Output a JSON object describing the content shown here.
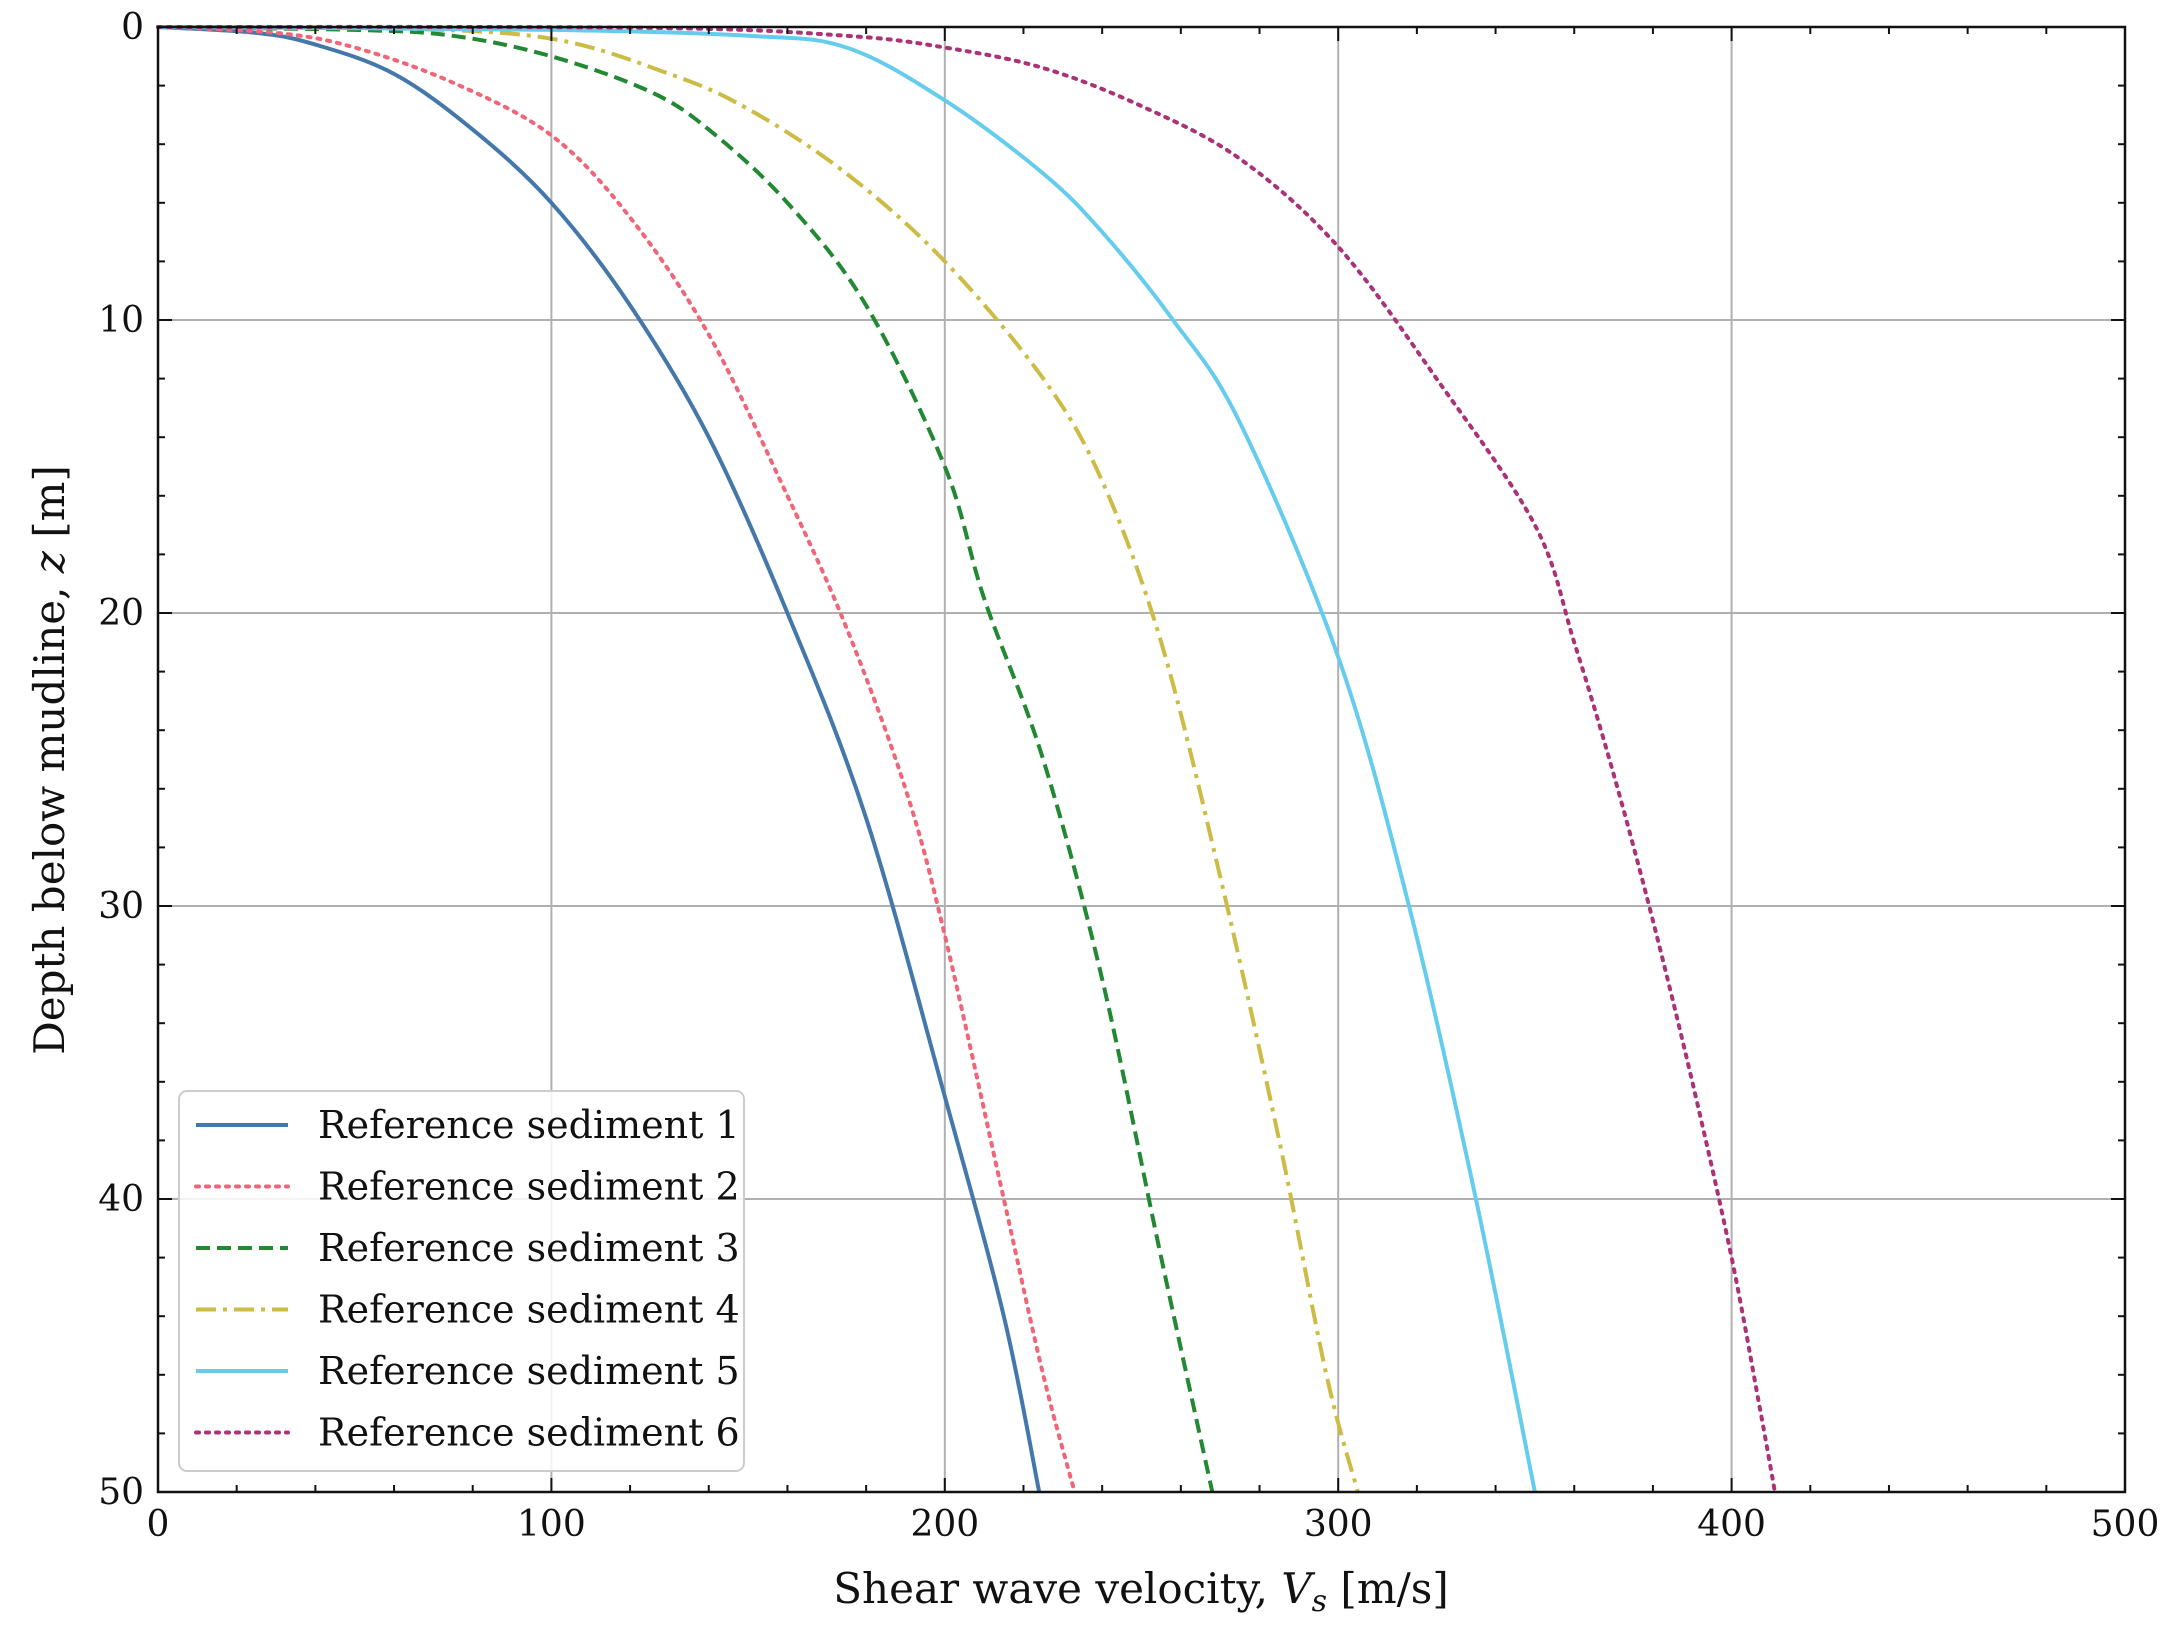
{
  "chart_data": {
    "type": "line",
    "xlabel_text": "Shear wave velocity, ",
    "xlabel_symbol": "V",
    "xlabel_subscript": "s",
    "xlabel_unit": " [m/s]",
    "ylabel_text": "Depth below mudline, ",
    "ylabel_symbol": "z",
    "ylabel_unit": " [m]",
    "xlim": [
      0,
      500
    ],
    "ylim": [
      50,
      0
    ],
    "y_inverted": true,
    "xticks": [
      "0",
      "100",
      "200",
      "300",
      "400",
      "500"
    ],
    "yticks": [
      "0",
      "10",
      "20",
      "30",
      "40",
      "50"
    ],
    "grid": true,
    "legend_position": "lower-left",
    "series": [
      {
        "name": "Reference sediment 1",
        "color": "#4477aa",
        "style": "solid",
        "points": [
          [
            0,
            0
          ],
          [
            25,
            0.2
          ],
          [
            40,
            0.6
          ],
          [
            60,
            1.6
          ],
          [
            80,
            3.5
          ],
          [
            100,
            6
          ],
          [
            120,
            9.5
          ],
          [
            140,
            14
          ],
          [
            160,
            20
          ],
          [
            180,
            27
          ],
          [
            200,
            36.5
          ],
          [
            215,
            44
          ],
          [
            224,
            50
          ]
        ]
      },
      {
        "name": "Reference sediment 2",
        "color": "#ee6677",
        "style": "dotted",
        "points": [
          [
            0,
            0
          ],
          [
            30,
            0.2
          ],
          [
            50,
            0.7
          ],
          [
            75,
            1.9
          ],
          [
            100,
            3.7
          ],
          [
            120,
            6.5
          ],
          [
            140,
            10.5
          ],
          [
            160,
            16
          ],
          [
            175,
            20.5
          ],
          [
            190,
            26
          ],
          [
            200,
            31
          ],
          [
            215,
            40
          ],
          [
            225,
            46
          ],
          [
            233,
            50
          ]
        ]
      },
      {
        "name": "Reference sediment 3",
        "color": "#228833",
        "style": "dashed",
        "points": [
          [
            0,
            0
          ],
          [
            50,
            0.1
          ],
          [
            75,
            0.3
          ],
          [
            100,
            1
          ],
          [
            125,
            2.2
          ],
          [
            140,
            3.5
          ],
          [
            160,
            6
          ],
          [
            180,
            9.5
          ],
          [
            200,
            15
          ],
          [
            210,
            19.5
          ],
          [
            225,
            25
          ],
          [
            240,
            32.5
          ],
          [
            255,
            42
          ],
          [
            268,
            50
          ]
        ]
      },
      {
        "name": "Reference sediment 4",
        "color": "#ccbb44",
        "style": "dashdot",
        "points": [
          [
            0,
            0
          ],
          [
            60,
            0.05
          ],
          [
            100,
            0.4
          ],
          [
            130,
            1.6
          ],
          [
            150,
            2.8
          ],
          [
            175,
            5
          ],
          [
            200,
            8
          ],
          [
            225,
            12
          ],
          [
            240,
            15.5
          ],
          [
            255,
            21
          ],
          [
            270,
            29
          ],
          [
            285,
            38
          ],
          [
            297,
            46
          ],
          [
            305,
            50
          ]
        ]
      },
      {
        "name": "Reference sediment 5",
        "color": "#66ccee",
        "style": "solid",
        "points": [
          [
            0,
            0
          ],
          [
            100,
            0.1
          ],
          [
            150,
            0.3
          ],
          [
            175,
            0.7
          ],
          [
            200,
            2.5
          ],
          [
            225,
            5
          ],
          [
            240,
            7
          ],
          [
            258,
            10
          ],
          [
            275,
            13.5
          ],
          [
            300,
            21.5
          ],
          [
            318,
            30
          ],
          [
            335,
            40
          ],
          [
            350,
            50
          ]
        ]
      },
      {
        "name": "Reference sediment 6",
        "color": "#aa3377",
        "style": "dotted",
        "points": [
          [
            0,
            0
          ],
          [
            125,
            0.03
          ],
          [
            175,
            0.3
          ],
          [
            200,
            0.7
          ],
          [
            225,
            1.4
          ],
          [
            250,
            2.7
          ],
          [
            275,
            4.5
          ],
          [
            300,
            7.5
          ],
          [
            325,
            12
          ],
          [
            350,
            17
          ],
          [
            360,
            21
          ],
          [
            370,
            25.5
          ],
          [
            380,
            30.5
          ],
          [
            390,
            36
          ],
          [
            400,
            42
          ],
          [
            407,
            47
          ],
          [
            411,
            50
          ]
        ]
      }
    ]
  }
}
